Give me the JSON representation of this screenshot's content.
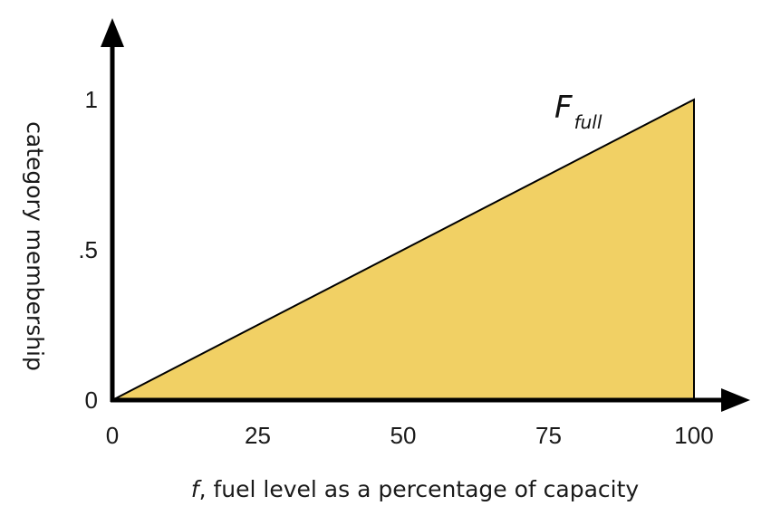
{
  "chart_data": {
    "type": "area",
    "x": [
      0,
      100
    ],
    "series": [
      {
        "name": "F",
        "subscript": "full",
        "values": [
          0,
          1
        ]
      }
    ],
    "xticks": [
      "0",
      "25",
      "50",
      "75",
      "100"
    ],
    "yticks": [
      "0",
      ".5",
      "1"
    ],
    "xlabel_var": "f",
    "xlabel": ", fuel level as a percentage of capacity",
    "ylabel": "category membership",
    "xlim": [
      0,
      100
    ],
    "ylim": [
      0,
      1
    ],
    "grid": false,
    "colors": {
      "fill": "#f1d064",
      "line": "#000000"
    }
  }
}
